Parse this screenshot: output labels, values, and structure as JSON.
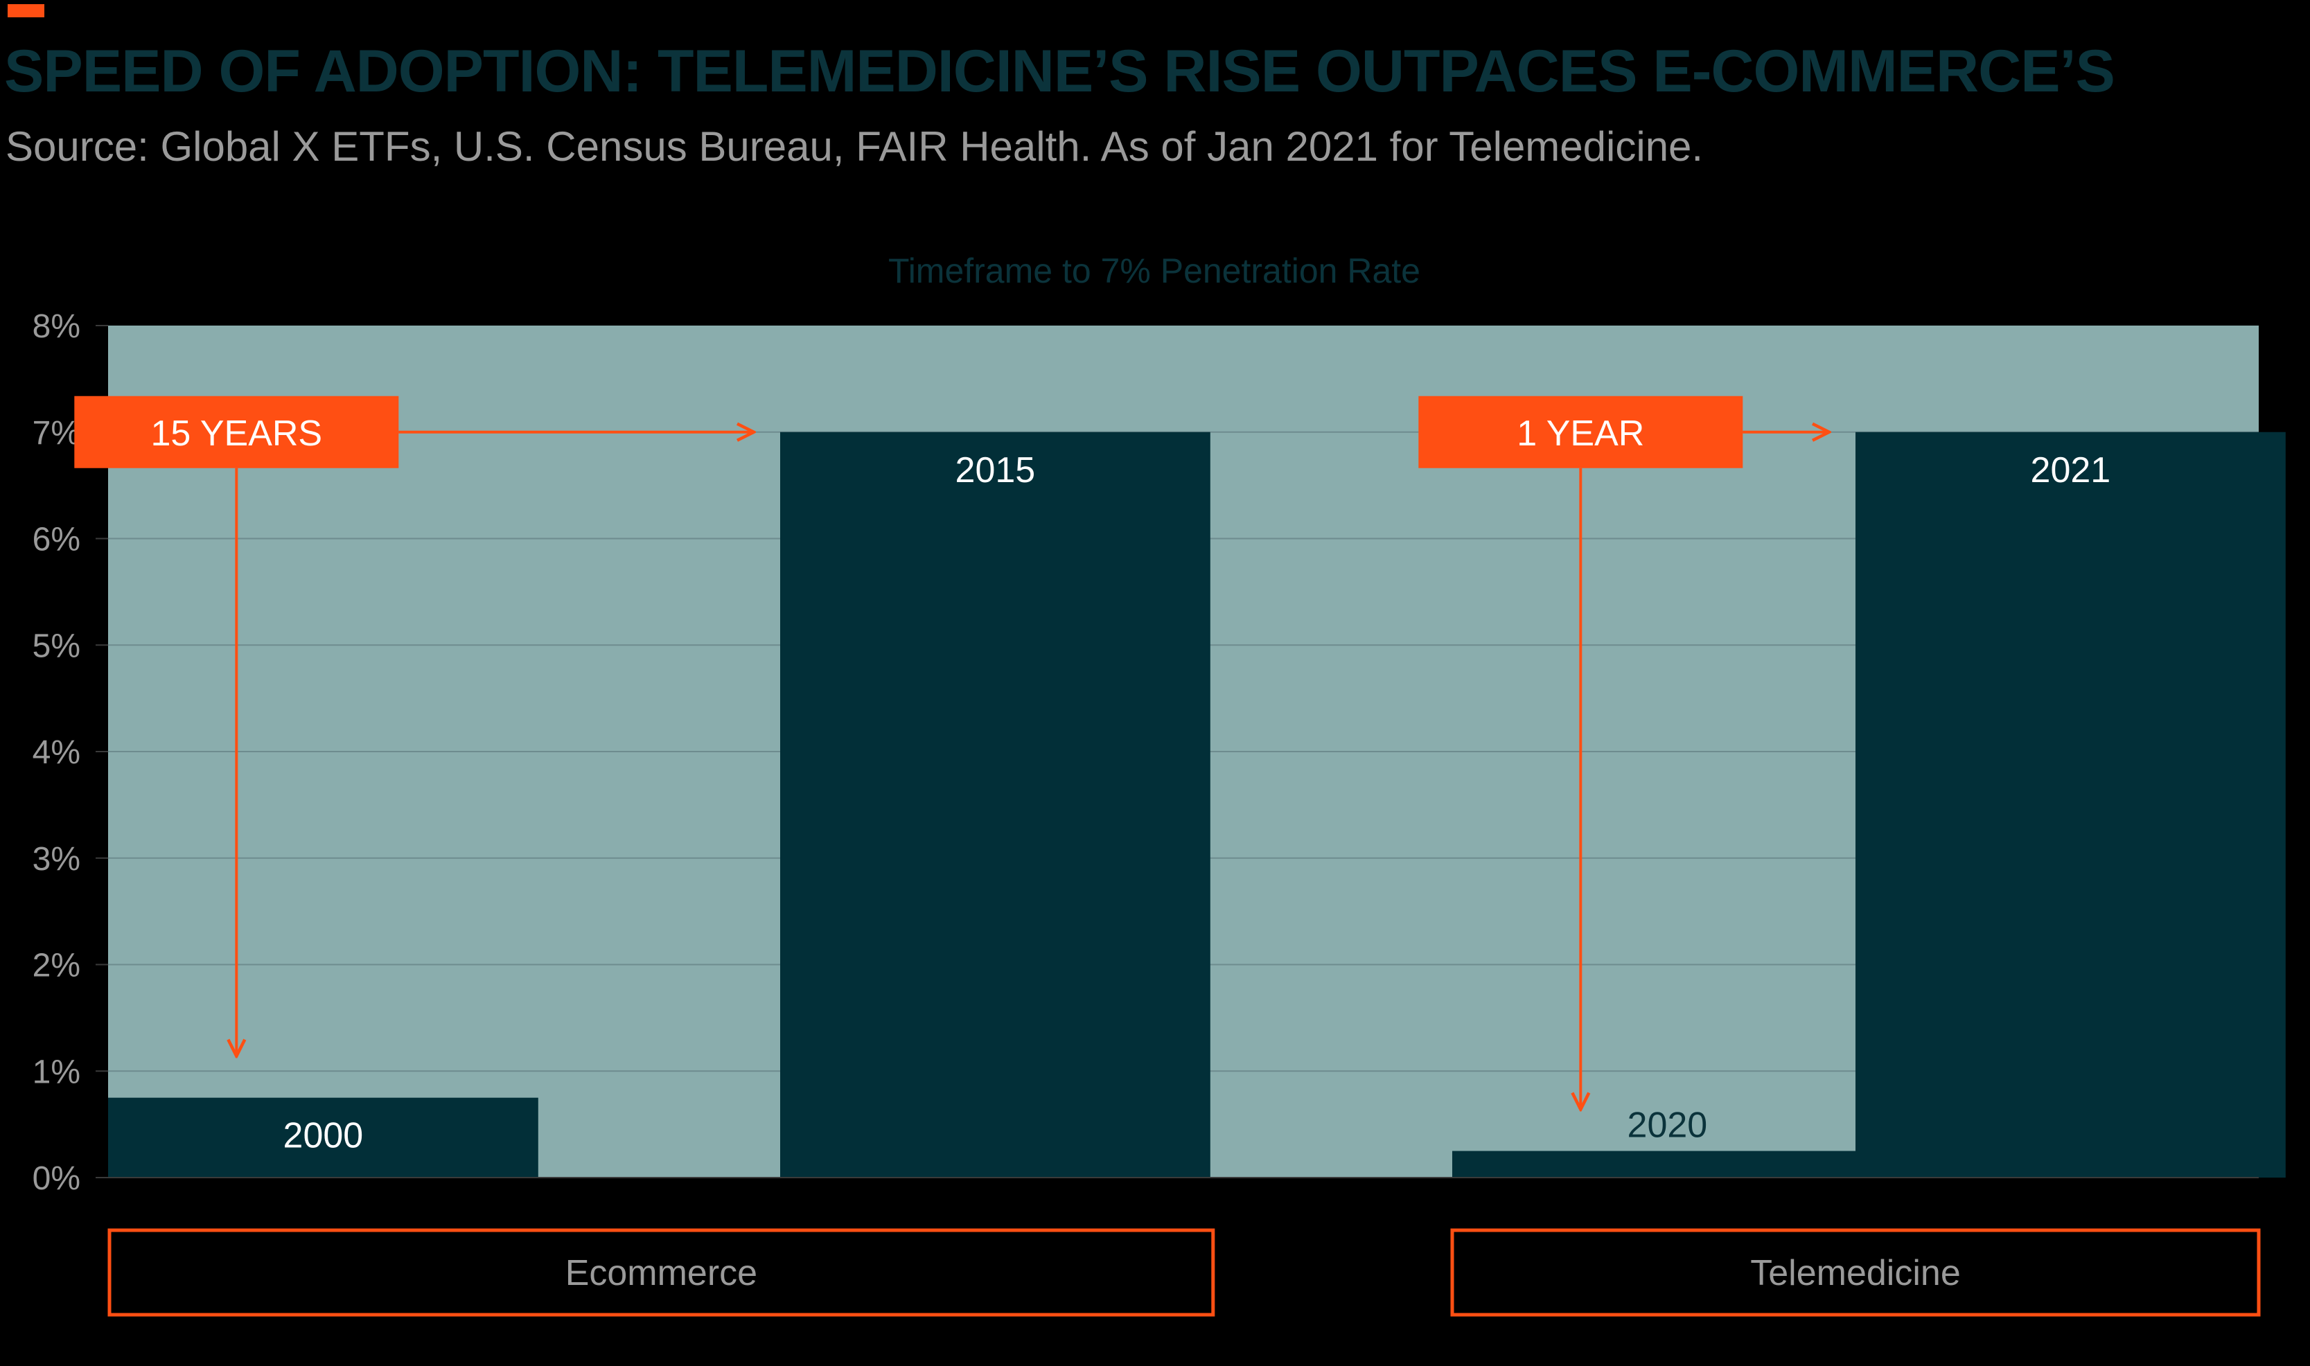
{
  "header": {
    "title": "SPEED OF ADOPTION: TELEMEDICINE’S RISE OUTPACES E-COMMERCE’S",
    "source": "Source: Global X ETFs, U.S. Census Bureau, FAIR Health. As of Jan 2021 for Telemedicine."
  },
  "colors": {
    "background": "#000000",
    "accent": "#ff4f13",
    "title": "#0b333b",
    "plot_background": "#8aadad",
    "bar": "#022f38",
    "gridline": "#6e8c8f",
    "axis_text": "#9a9a9a"
  },
  "chart_data": {
    "type": "bar",
    "title": "Timeframe to 7% Penetration Rate",
    "xlabel": "",
    "ylabel": "",
    "ylim": [
      0,
      8
    ],
    "y_ticks": [
      0,
      1,
      2,
      3,
      4,
      5,
      6,
      7,
      8
    ],
    "y_tick_labels": [
      "0%",
      "1%",
      "2%",
      "3%",
      "4%",
      "5%",
      "6%",
      "7%",
      "8%"
    ],
    "grid": true,
    "categories": [
      "2000",
      "2015",
      "2020",
      "2021"
    ],
    "values": [
      0.75,
      7,
      0.25,
      7
    ],
    "groups": [
      {
        "label": "Ecommerce",
        "categories": [
          "2000",
          "2015"
        ]
      },
      {
        "label": "Telemedicine",
        "categories": [
          "2020",
          "2021"
        ]
      }
    ],
    "annotations": [
      {
        "text": "15 YEARS",
        "from": "2000",
        "to": "2015"
      },
      {
        "text": "1 YEAR",
        "from": "2020",
        "to": "2021"
      }
    ]
  }
}
